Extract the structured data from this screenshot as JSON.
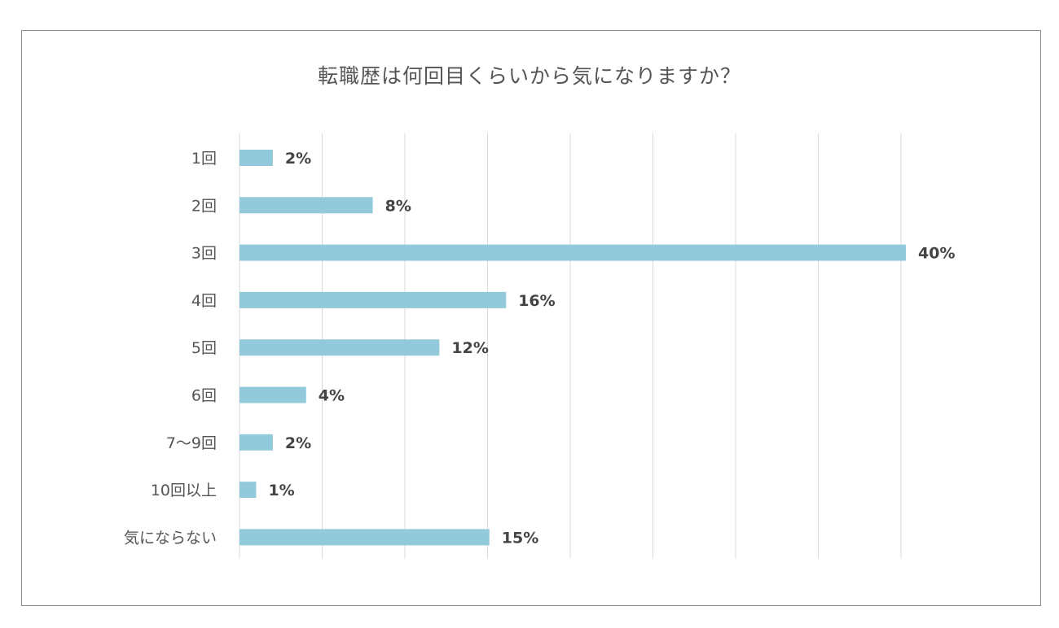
{
  "chart_data": {
    "type": "bar",
    "orientation": "horizontal",
    "title": "転職歴は何回目くらいから気になりますか？",
    "categories": [
      "1回",
      "2回",
      "3回",
      "4回",
      "5回",
      "6回",
      "7〜9回",
      "10回以上",
      "気にならない"
    ],
    "values": [
      2,
      8,
      40,
      16,
      12,
      4,
      2,
      1,
      15
    ],
    "value_labels": [
      "2%",
      "8%",
      "40%",
      "16%",
      "12%",
      "4%",
      "2%",
      "1%",
      "15%"
    ],
    "xlim": [
      0,
      40
    ],
    "grid": "vertical",
    "legend": "none",
    "bar_color": "#92cadb",
    "gridline_color": "#d9d9d9"
  }
}
